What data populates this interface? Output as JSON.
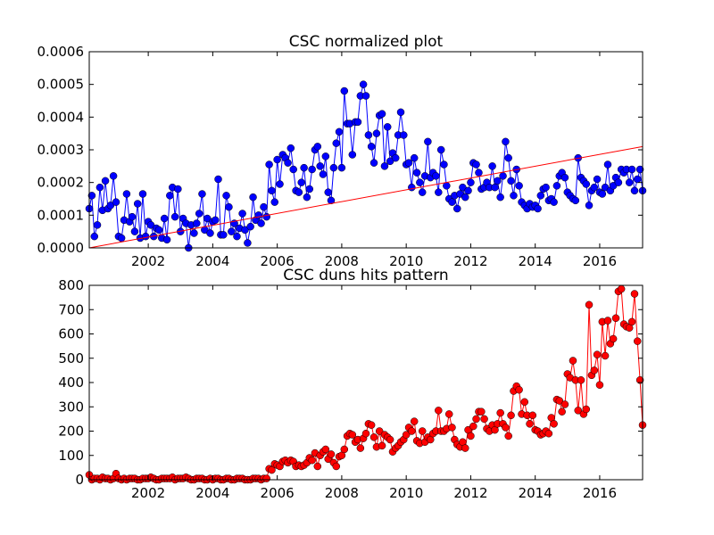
{
  "chart_data": [
    {
      "type": "line",
      "title": "CSC normalized plot",
      "xlim": [
        2000.17,
        2017.33
      ],
      "xticks": [
        2002,
        2004,
        2006,
        2008,
        2010,
        2012,
        2014,
        2016
      ],
      "ylim": [
        0,
        0.0006
      ],
      "yticks": [
        {
          "value": 0,
          "label": "0.0000"
        },
        {
          "value": 0.0001,
          "label": "0.0001"
        },
        {
          "value": 0.0002,
          "label": "0.0002"
        },
        {
          "value": 0.0003,
          "label": "0.0003"
        },
        {
          "value": 0.0004,
          "label": "0.0004"
        },
        {
          "value": 0.0005,
          "label": "0.0005"
        },
        {
          "value": 0.0006,
          "label": "0.0006"
        }
      ],
      "x": [
        2000.17,
        2000.25,
        2000.33,
        2000.42,
        2000.5,
        2000.58,
        2000.67,
        2000.75,
        2000.83,
        2000.92,
        2001,
        2001.08,
        2001.17,
        2001.25,
        2001.33,
        2001.42,
        2001.5,
        2001.58,
        2001.67,
        2001.75,
        2001.83,
        2001.92,
        2002,
        2002.08,
        2002.17,
        2002.25,
        2002.33,
        2002.42,
        2002.5,
        2002.58,
        2002.67,
        2002.75,
        2002.83,
        2002.92,
        2003,
        2003.08,
        2003.17,
        2003.25,
        2003.33,
        2003.42,
        2003.5,
        2003.58,
        2003.67,
        2003.75,
        2003.83,
        2003.92,
        2004,
        2004.08,
        2004.17,
        2004.25,
        2004.33,
        2004.42,
        2004.5,
        2004.58,
        2004.67,
        2004.75,
        2004.83,
        2004.92,
        2005,
        2005.08,
        2005.17,
        2005.25,
        2005.33,
        2005.42,
        2005.5,
        2005.58,
        2005.67,
        2005.75,
        2005.83,
        2005.92,
        2006,
        2006.08,
        2006.17,
        2006.25,
        2006.33,
        2006.42,
        2006.5,
        2006.58,
        2006.67,
        2006.75,
        2006.83,
        2006.92,
        2007,
        2007.08,
        2007.17,
        2007.25,
        2007.33,
        2007.42,
        2007.5,
        2007.58,
        2007.67,
        2007.75,
        2007.83,
        2007.92,
        2008,
        2008.08,
        2008.17,
        2008.25,
        2008.33,
        2008.42,
        2008.5,
        2008.58,
        2008.67,
        2008.75,
        2008.83,
        2008.92,
        2009,
        2009.08,
        2009.17,
        2009.25,
        2009.33,
        2009.42,
        2009.5,
        2009.58,
        2009.67,
        2009.75,
        2009.83,
        2009.92,
        2010,
        2010.08,
        2010.17,
        2010.25,
        2010.33,
        2010.42,
        2010.5,
        2010.58,
        2010.67,
        2010.75,
        2010.83,
        2010.92,
        2011,
        2011.08,
        2011.17,
        2011.25,
        2011.33,
        2011.42,
        2011.5,
        2011.58,
        2011.67,
        2011.75,
        2011.83,
        2011.92,
        2012,
        2012.08,
        2012.17,
        2012.25,
        2012.33,
        2012.42,
        2012.5,
        2012.58,
        2012.67,
        2012.75,
        2012.83,
        2012.92,
        2013,
        2013.08,
        2013.17,
        2013.25,
        2013.33,
        2013.42,
        2013.5,
        2013.58,
        2013.67,
        2013.75,
        2013.83,
        2013.92,
        2014,
        2014.08,
        2014.17,
        2014.25,
        2014.33,
        2014.42,
        2014.5,
        2014.58,
        2014.67,
        2014.75,
        2014.83,
        2014.92,
        2015,
        2015.08,
        2015.17,
        2015.25,
        2015.33,
        2015.42,
        2015.5,
        2015.58,
        2015.67,
        2015.75,
        2015.83,
        2015.92,
        2016,
        2016.08,
        2016.17,
        2016.25,
        2016.33,
        2016.42,
        2016.5,
        2016.58,
        2016.67,
        2016.75,
        2016.83,
        2016.92,
        2017,
        2017.08,
        2017.17,
        2017.25,
        2017.33
      ],
      "series": [
        {
          "color": "#0000ff",
          "values": [
            0.00012,
            0.00016,
            3.5e-05,
            7e-05,
            0.000185,
            0.000115,
            0.000205,
            0.00012,
            0.00013,
            0.00022,
            0.00014,
            3.5e-05,
            3e-05,
            8.5e-05,
            0.000165,
            8e-05,
            9.5e-05,
            5e-05,
            0.000135,
            3e-05,
            0.000165,
            3.5e-05,
            8e-05,
            7e-05,
            3.5e-05,
            6e-05,
            5.5e-05,
            3e-05,
            9e-05,
            2.5e-05,
            0.00016,
            0.000185,
            9.5e-05,
            0.00018,
            5e-05,
            9e-05,
            7.5e-05,
            0,
            7e-05,
            4.5e-05,
            7.5e-05,
            0.000105,
            0.000165,
            5.5e-05,
            9e-05,
            4.5e-05,
            8e-05,
            8.5e-05,
            0.00021,
            4e-05,
            4e-05,
            0.00016,
            0.000125,
            5e-05,
            7.5e-05,
            3.5e-05,
            6e-05,
            0.000105,
            5.5e-05,
            1.5e-05,
            6.5e-05,
            0.000155,
            8.5e-05,
            0.0001,
            7.5e-05,
            0.000125,
            9.5e-05,
            0.000255,
            0.000175,
            0.00014,
            0.00027,
            0.000195,
            0.000285,
            0.000275,
            0.00026,
            0.000305,
            0.00024,
            0.000175,
            0.00017,
            0.0002,
            0.000245,
            0.000155,
            0.00018,
            0.00024,
            0.0003,
            0.00031,
            0.00025,
            0.000225,
            0.00028,
            0.00017,
            0.000145,
            0.000245,
            0.00032,
            0.000355,
            0.000245,
            0.00048,
            0.00038,
            0.00038,
            0.000285,
            0.000385,
            0.000385,
            0.000465,
            0.0005,
            0.000465,
            0.000345,
            0.00031,
            0.00026,
            0.00035,
            0.000405,
            0.00041,
            0.00025,
            0.00037,
            0.000265,
            0.00029,
            0.000275,
            0.000345,
            0.000415,
            0.000345,
            0.000255,
            0.00026,
            0.000185,
            0.000275,
            0.00023,
            0.0002,
            0.00017,
            0.00022,
            0.000325,
            0.000215,
            0.00023,
            0.00022,
            0.00017,
            0.0003,
            0.000255,
            0.00019,
            0.00015,
            0.00014,
            0.00016,
            0.00012,
            0.000165,
            0.000185,
            0.000155,
            0.000175,
            0.0002,
            0.00026,
            0.000255,
            0.00023,
            0.00018,
            0.000185,
            0.0002,
            0.000185,
            0.00025,
            0.000185,
            0.000205,
            0.000155,
            0.00022,
            0.000325,
            0.000275,
            0.000205,
            0.00016,
            0.00024,
            0.00019,
            0.00014,
            0.00013,
            0.00012,
            0.000135,
            0.000125,
            0.00013,
            0.00012,
            0.00016,
            0.00018,
            0.000185,
            0.000145,
            0.00015,
            0.00014,
            0.00019,
            0.00022,
            0.00023,
            0.000215,
            0.00017,
            0.00016,
            0.00015,
            0.000145,
            0.000275,
            0.000215,
            0.000205,
            0.000195,
            0.00013,
            0.000175,
            0.000185,
            0.00021,
            0.00017,
            0.000165,
            0.000185,
            0.000255,
            0.000175,
            0.00019,
            0.000215,
            0.0002,
            0.00024,
            0.00023,
            0.00024,
            0.0002,
            0.00024,
            0.000175,
            0.00021,
            0.00024,
            0.000175
          ]
        }
      ],
      "trend": {
        "color": "#ff0000",
        "x": [
          2000.17,
          2017.33
        ],
        "values": [
          0,
          0.00031
        ]
      }
    },
    {
      "type": "line",
      "title": "CSC duns hits pattern",
      "xlim": [
        2000.17,
        2017.33
      ],
      "xticks": [
        2002,
        2004,
        2006,
        2008,
        2010,
        2012,
        2014,
        2016
      ],
      "ylim": [
        0,
        800
      ],
      "yticks": [
        0,
        100,
        200,
        300,
        400,
        500,
        600,
        700,
        800
      ],
      "x": [
        2000.17,
        2000.25,
        2000.33,
        2000.42,
        2000.5,
        2000.58,
        2000.67,
        2000.75,
        2000.83,
        2000.92,
        2001,
        2001.08,
        2001.17,
        2001.25,
        2001.33,
        2001.42,
        2001.5,
        2001.58,
        2001.67,
        2001.75,
        2001.83,
        2001.92,
        2002,
        2002.08,
        2002.17,
        2002.25,
        2002.33,
        2002.42,
        2002.5,
        2002.58,
        2002.67,
        2002.75,
        2002.83,
        2002.92,
        2003,
        2003.08,
        2003.17,
        2003.25,
        2003.33,
        2003.42,
        2003.5,
        2003.58,
        2003.67,
        2003.75,
        2003.83,
        2003.92,
        2004,
        2004.08,
        2004.17,
        2004.25,
        2004.33,
        2004.42,
        2004.5,
        2004.58,
        2004.67,
        2004.75,
        2004.83,
        2004.92,
        2005,
        2005.08,
        2005.17,
        2005.25,
        2005.33,
        2005.42,
        2005.5,
        2005.58,
        2005.67,
        2005.75,
        2005.83,
        2005.92,
        2006,
        2006.08,
        2006.17,
        2006.25,
        2006.33,
        2006.42,
        2006.5,
        2006.58,
        2006.67,
        2006.75,
        2006.83,
        2006.92,
        2007,
        2007.08,
        2007.17,
        2007.25,
        2007.33,
        2007.42,
        2007.5,
        2007.58,
        2007.67,
        2007.75,
        2007.83,
        2007.92,
        2008,
        2008.08,
        2008.17,
        2008.25,
        2008.33,
        2008.42,
        2008.5,
        2008.58,
        2008.67,
        2008.75,
        2008.83,
        2008.92,
        2009,
        2009.08,
        2009.17,
        2009.25,
        2009.33,
        2009.42,
        2009.5,
        2009.58,
        2009.67,
        2009.75,
        2009.83,
        2009.92,
        2010,
        2010.08,
        2010.17,
        2010.25,
        2010.33,
        2010.42,
        2010.5,
        2010.58,
        2010.67,
        2010.75,
        2010.83,
        2010.92,
        2011,
        2011.08,
        2011.17,
        2011.25,
        2011.33,
        2011.42,
        2011.5,
        2011.58,
        2011.67,
        2011.75,
        2011.83,
        2011.92,
        2012,
        2012.08,
        2012.17,
        2012.25,
        2012.33,
        2012.42,
        2012.5,
        2012.58,
        2012.67,
        2012.75,
        2012.83,
        2012.92,
        2013,
        2013.08,
        2013.17,
        2013.25,
        2013.33,
        2013.42,
        2013.5,
        2013.58,
        2013.67,
        2013.75,
        2013.83,
        2013.92,
        2014,
        2014.08,
        2014.17,
        2014.25,
        2014.33,
        2014.42,
        2014.5,
        2014.58,
        2014.67,
        2014.75,
        2014.83,
        2014.92,
        2015,
        2015.08,
        2015.17,
        2015.25,
        2015.33,
        2015.42,
        2015.5,
        2015.58,
        2015.67,
        2015.75,
        2015.83,
        2015.92,
        2016,
        2016.08,
        2016.17,
        2016.25,
        2016.33,
        2016.42,
        2016.5,
        2016.58,
        2016.67,
        2016.75,
        2016.83,
        2016.92,
        2017,
        2017.08,
        2017.17,
        2017.25,
        2017.33
      ],
      "series": [
        {
          "color": "#ff0000",
          "values": [
            20,
            0,
            5,
            5,
            0,
            10,
            5,
            5,
            0,
            5,
            25,
            5,
            0,
            5,
            0,
            5,
            5,
            5,
            0,
            0,
            5,
            5,
            5,
            10,
            5,
            0,
            0,
            5,
            5,
            5,
            5,
            10,
            0,
            5,
            5,
            5,
            10,
            5,
            0,
            0,
            5,
            5,
            5,
            0,
            0,
            5,
            0,
            5,
            5,
            0,
            0,
            5,
            5,
            0,
            0,
            5,
            5,
            5,
            0,
            0,
            0,
            5,
            5,
            5,
            0,
            5,
            5,
            45,
            40,
            65,
            60,
            55,
            75,
            80,
            70,
            80,
            75,
            55,
            60,
            55,
            60,
            70,
            90,
            80,
            110,
            55,
            100,
            115,
            125,
            85,
            105,
            70,
            55,
            95,
            100,
            125,
            180,
            190,
            185,
            155,
            165,
            130,
            170,
            190,
            230,
            225,
            175,
            135,
            200,
            140,
            185,
            175,
            165,
            115,
            130,
            140,
            155,
            165,
            185,
            215,
            200,
            240,
            160,
            150,
            200,
            155,
            175,
            165,
            190,
            200,
            285,
            200,
            200,
            210,
            270,
            215,
            165,
            145,
            135,
            155,
            130,
            205,
            180,
            220,
            250,
            280,
            280,
            250,
            210,
            200,
            225,
            205,
            230,
            275,
            230,
            215,
            180,
            265,
            365,
            385,
            370,
            270,
            320,
            265,
            230,
            265,
            205,
            200,
            185,
            190,
            200,
            190,
            255,
            230,
            330,
            325,
            280,
            310,
            435,
            420,
            490,
            410,
            285,
            410,
            270,
            290,
            720,
            430,
            450,
            515,
            390,
            650,
            510,
            655,
            560,
            580,
            665,
            775,
            785,
            640,
            630,
            625,
            650,
            765,
            570,
            410,
            225
          ]
        }
      ]
    }
  ]
}
